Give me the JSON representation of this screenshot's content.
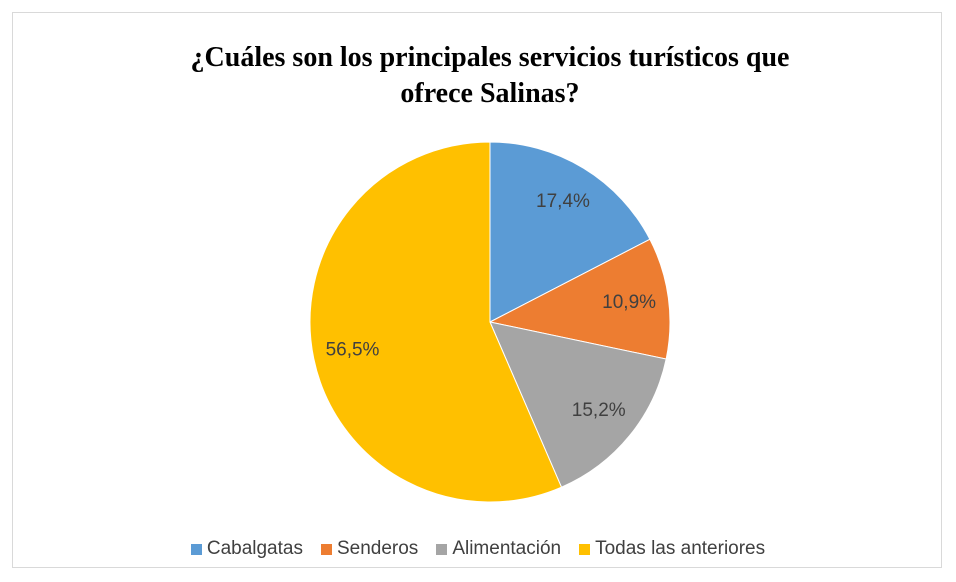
{
  "chart_data": {
    "type": "pie",
    "title": "¿Cuáles son los principales servicios turísticos que ofrece Salinas?",
    "categories": [
      "Cabalgatas",
      "Senderos",
      "Alimentación",
      "Todas las anteriores"
    ],
    "values": [
      17.4,
      10.9,
      15.2,
      56.5
    ],
    "value_labels": [
      "17,4%",
      "10,9%",
      "15,2%",
      "56,5%"
    ],
    "colors": [
      "#5b9bd5",
      "#ed7d31",
      "#a5a5a5",
      "#ffc000"
    ],
    "legend": "bottom"
  }
}
